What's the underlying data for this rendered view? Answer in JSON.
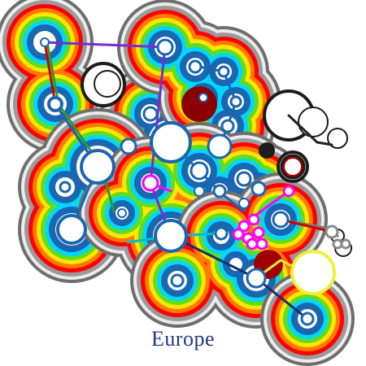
{
  "caption": "Europe",
  "colors": {
    "caption": "#1f3a7a",
    "rings": [
      "#6e6e6e",
      "#ececec",
      "#9a9a9a",
      "#ff0000",
      "#ff7a00",
      "#ffe600",
      "#60dd1f",
      "#00d6ff",
      "#1a66b0",
      "#ffffff"
    ],
    "halo_outline": "#1c1c1c",
    "halo_fill": "#ffffff",
    "gray_fill": "#8a8a8a",
    "dark_red": "#a00000",
    "dark_red_fill": "#8b0000",
    "magenta": "#ff00ff",
    "yellow": "#f0f03a",
    "lines": {
      "red": "#d00000",
      "green": "#2f9a2f",
      "blue": "#1a66b0",
      "purple": "#7b2bd0",
      "cyan": "#00bcd4",
      "navy": "#1a2e6b",
      "gray": "#7d7d7d",
      "yellow": "#e8e830",
      "magenta": "#ff00ff",
      "black": "#222222"
    }
  }
}
